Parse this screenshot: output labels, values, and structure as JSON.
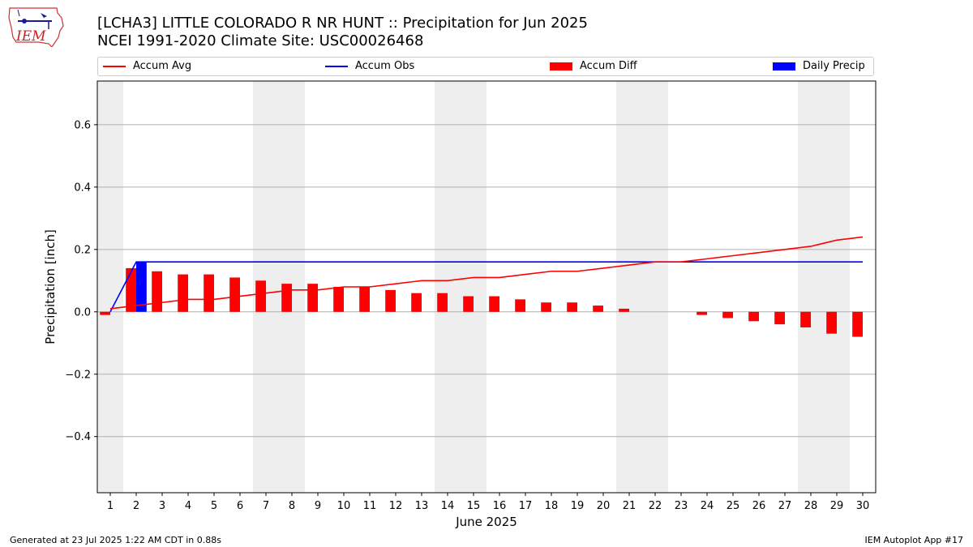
{
  "header": {
    "logo_text": "IEM",
    "title_line1": "[LCHA3] LITTLE COLORADO R NR HUNT :: Precipitation for Jun 2025",
    "title_line2": "NCEI 1991-2020 Climate Site: USC00026468"
  },
  "legend": {
    "items": [
      {
        "label": "Accum Avg",
        "kind": "line",
        "color": "#ff0000"
      },
      {
        "label": "Accum Obs",
        "kind": "line",
        "color": "#0000ff"
      },
      {
        "label": "Accum Diff",
        "kind": "box",
        "color": "#ff0000"
      },
      {
        "label": "Daily Precip",
        "kind": "box",
        "color": "#0000ff"
      }
    ],
    "placement": "top"
  },
  "footer": {
    "left": "Generated at 23 Jul 2025 1:22 AM CDT in 0.88s",
    "right": "IEM Autoplot App #17"
  },
  "chart_data": {
    "type": "bar",
    "xlabel": "June 2025",
    "ylabel": "Precipitation [inch]",
    "xlim": [
      0.5,
      30.5
    ],
    "ylim": [
      -0.58,
      0.74
    ],
    "x_ticks": [
      1,
      2,
      3,
      4,
      5,
      6,
      7,
      8,
      9,
      10,
      11,
      12,
      13,
      14,
      15,
      16,
      17,
      18,
      19,
      20,
      21,
      22,
      23,
      24,
      25,
      26,
      27,
      28,
      29,
      30
    ],
    "y_ticks": [
      -0.4,
      -0.2,
      0.0,
      0.2,
      0.4,
      0.6
    ],
    "y_tick_labels": [
      "−0.4",
      "−0.2",
      "0.0",
      "0.2",
      "0.4",
      "0.6"
    ],
    "grid": "y",
    "weekend_shading": [
      [
        0.5,
        1.5
      ],
      [
        6.5,
        8.5
      ],
      [
        13.5,
        15.5
      ],
      [
        20.5,
        22.5
      ],
      [
        27.5,
        29.5
      ]
    ],
    "shade_color": "#eeeeee",
    "days": [
      1,
      2,
      3,
      4,
      5,
      6,
      7,
      8,
      9,
      10,
      11,
      12,
      13,
      14,
      15,
      16,
      17,
      18,
      19,
      20,
      21,
      22,
      23,
      24,
      25,
      26,
      27,
      28,
      29,
      30
    ],
    "series": [
      {
        "name": "Accum Avg",
        "kind": "line",
        "color": "#ff0000",
        "values": [
          0.01,
          0.02,
          0.03,
          0.04,
          0.04,
          0.05,
          0.06,
          0.07,
          0.07,
          0.08,
          0.08,
          0.09,
          0.1,
          0.1,
          0.11,
          0.11,
          0.12,
          0.13,
          0.13,
          0.14,
          0.15,
          0.16,
          0.16,
          0.17,
          0.18,
          0.19,
          0.2,
          0.21,
          0.23,
          0.24
        ]
      },
      {
        "name": "Accum Obs",
        "kind": "line",
        "color": "#0000ff",
        "values": [
          0.0,
          0.16,
          0.16,
          0.16,
          0.16,
          0.16,
          0.16,
          0.16,
          0.16,
          0.16,
          0.16,
          0.16,
          0.16,
          0.16,
          0.16,
          0.16,
          0.16,
          0.16,
          0.16,
          0.16,
          0.16,
          0.16,
          0.16,
          0.16,
          0.16,
          0.16,
          0.16,
          0.16,
          0.16,
          0.16
        ]
      },
      {
        "name": "Accum Diff",
        "kind": "bar",
        "color": "#ff0000",
        "values": [
          -0.01,
          0.14,
          0.13,
          0.12,
          0.12,
          0.11,
          0.1,
          0.09,
          0.09,
          0.08,
          0.08,
          0.07,
          0.06,
          0.06,
          0.05,
          0.05,
          0.04,
          0.03,
          0.03,
          0.02,
          0.01,
          0.0,
          0.0,
          -0.01,
          -0.02,
          -0.03,
          -0.04,
          -0.05,
          -0.07,
          -0.08
        ]
      },
      {
        "name": "Daily Precip",
        "kind": "bar",
        "color": "#0000ff",
        "values": [
          0,
          0.16,
          0,
          0,
          0,
          0,
          0,
          0,
          0,
          0,
          0,
          0,
          0,
          0,
          0,
          0,
          0,
          0,
          0,
          0,
          0,
          0,
          0,
          0,
          0,
          0,
          0,
          0,
          0,
          0
        ]
      }
    ]
  }
}
